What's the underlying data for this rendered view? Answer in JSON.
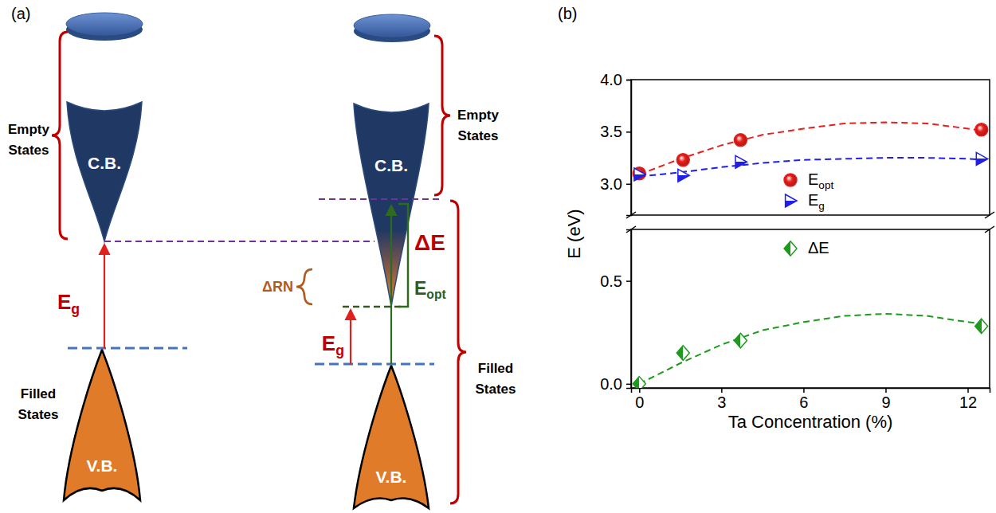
{
  "panel_labels": [
    "(a)",
    "(b)"
  ],
  "diagram": {
    "left": {
      "conduction_band": "C.B.",
      "valence_band": "V.B.",
      "empty_states": "Empty States",
      "filled_states": "Filled States",
      "band_gap": "Eg"
    },
    "right": {
      "conduction_band": "C.B.",
      "valence_band": "V.B.",
      "empty_states": "Empty States",
      "filled_states": "Filled States",
      "band_gap": "Eg",
      "optical_gap": "Eopt",
      "shift": "ΔE",
      "renormalization": "ΔRN"
    }
  },
  "chart_data": [
    {
      "type": "scatter",
      "ylabel": "E (eV)",
      "x": [
        0,
        1.6,
        3.7,
        12.5
      ],
      "xlim": [
        -0.3,
        12.8
      ],
      "ylim": [
        2.7,
        4.0
      ],
      "yticks": [
        {
          "value": 3,
          "label": "3.0"
        },
        {
          "value": 3.5,
          "label": "3.5"
        },
        {
          "value": 4,
          "label": "4.0"
        }
      ],
      "tick_labels": "y",
      "legend": "lower right",
      "series": [
        {
          "name": "Eopt",
          "color": "#e8201c",
          "marker": "circle",
          "line_style": "dashed",
          "values": [
            3.1,
            3.23,
            3.42,
            3.52
          ],
          "fit": {
            "x": [
              0,
              1.5,
              3,
              4.5,
              6,
              7.5,
              9,
              10.5,
              12,
              12.6
            ],
            "values": [
              3.09,
              3.24,
              3.37,
              3.47,
              3.53,
              3.58,
              3.59,
              3.58,
              3.53,
              3.51
            ]
          }
        },
        {
          "name": "Eg",
          "color": "#1f1fe6",
          "marker": "triangle-right",
          "line_style": "dashed",
          "values": [
            3.09,
            3.08,
            3.21,
            3.24
          ],
          "fit": {
            "x": [
              0,
              1.5,
              3,
              4.5,
              6,
              7.5,
              9,
              10.5,
              12,
              12.6
            ],
            "values": [
              3.07,
              3.11,
              3.16,
              3.2,
              3.23,
              3.24,
              3.25,
              3.25,
              3.24,
              3.23
            ]
          }
        }
      ]
    },
    {
      "type": "scatter",
      "xlabel": "Ta Concentration (%)",
      "x": [
        0,
        1.6,
        3.7,
        12.5
      ],
      "xlim": [
        -0.3,
        12.8
      ],
      "xticks": [
        0,
        3,
        6,
        9,
        12
      ],
      "ylim": [
        -0.02,
        0.75
      ],
      "yticks": [
        {
          "value": 0,
          "label": "0.0"
        },
        {
          "value": 0.5,
          "label": "0.5"
        }
      ],
      "legend": "upper right",
      "series": [
        {
          "name": "ΔE",
          "color": "#1e9a1e",
          "marker": "diamond",
          "line_style": "dashed",
          "values": [
            0.0,
            0.15,
            0.21,
            0.28
          ],
          "fit": {
            "x": [
              0,
              1.5,
              3,
              4.5,
              6,
              7.5,
              9,
              10.5,
              12,
              12.6
            ],
            "values": [
              0.0,
              0.1,
              0.19,
              0.26,
              0.3,
              0.33,
              0.34,
              0.33,
              0.3,
              0.29
            ]
          }
        }
      ]
    }
  ]
}
